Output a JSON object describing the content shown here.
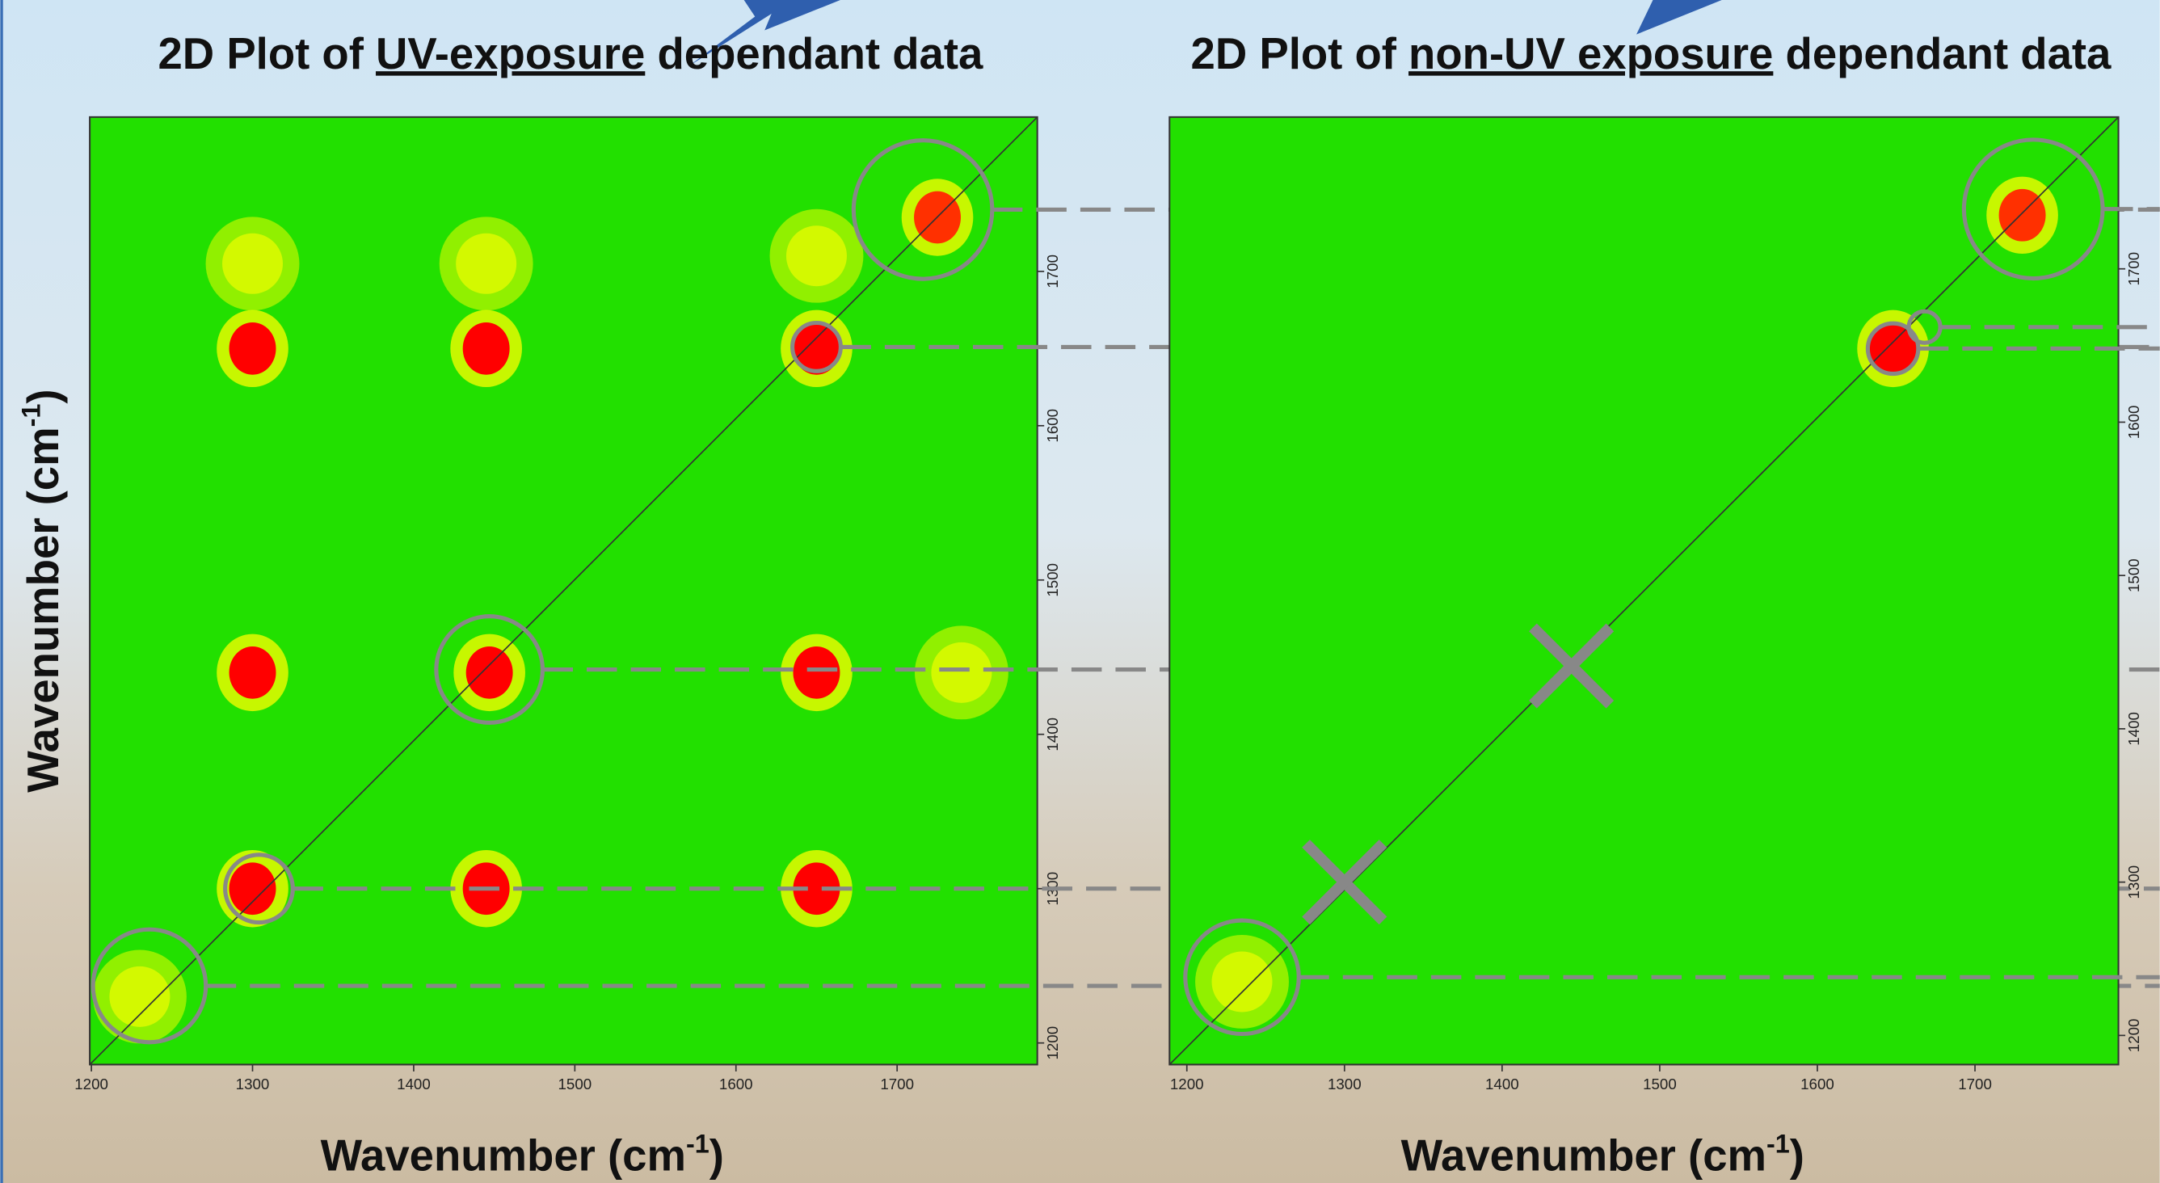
{
  "chart_data": [
    {
      "type": "heatmap",
      "title": [
        "2D Plot of ",
        "UV-exposure",
        " dependant data"
      ],
      "xlabel": [
        "Wavenumber (cm",
        "-1",
        ")"
      ],
      "ylabel": [
        "Wavenumber (cm",
        "-1",
        ")"
      ],
      "xlim": [
        1199,
        1787
      ],
      "ylim": [
        1186,
        1800
      ],
      "xticks": [
        1200,
        1300,
        1400,
        1500,
        1600,
        1700
      ],
      "yticks": [
        1200,
        1300,
        1400,
        1500,
        1600,
        1700
      ],
      "background": "#22e000",
      "peaks": [
        {
          "x": 1300,
          "y": 1650,
          "color": "#ff0000"
        },
        {
          "x": 1445,
          "y": 1650,
          "color": "#ff0000"
        },
        {
          "x": 1650,
          "y": 1650,
          "color": "#ff0000"
        },
        {
          "x": 1300,
          "y": 1440,
          "color": "#ff0000"
        },
        {
          "x": 1447,
          "y": 1440,
          "color": "#ff0000"
        },
        {
          "x": 1650,
          "y": 1440,
          "color": "#ff0000"
        },
        {
          "x": 1300,
          "y": 1300,
          "color": "#ff0000"
        },
        {
          "x": 1445,
          "y": 1300,
          "color": "#ff0000"
        },
        {
          "x": 1650,
          "y": 1300,
          "color": "#ff0000"
        },
        {
          "x": 1725,
          "y": 1735,
          "color": "#ff3000"
        },
        {
          "x": 1300,
          "y": 1705,
          "color": "#ffff00"
        },
        {
          "x": 1445,
          "y": 1705,
          "color": "#ffff00"
        },
        {
          "x": 1650,
          "y": 1710,
          "color": "#ffff00"
        },
        {
          "x": 1740,
          "y": 1440,
          "color": "#ffff00"
        },
        {
          "x": 1230,
          "y": 1230,
          "color": "#ffff00"
        }
      ],
      "circles": [
        {
          "x": 1236,
          "y": 1237,
          "r": 35
        },
        {
          "x": 1304,
          "y": 1300,
          "r": 21
        },
        {
          "x": 1447,
          "y": 1442,
          "r": 33
        },
        {
          "x": 1650,
          "y": 1651,
          "r": 15
        },
        {
          "x": 1716,
          "y": 1740,
          "r": 43
        }
      ],
      "crosses": []
    },
    {
      "type": "heatmap",
      "title": [
        "2D Plot of ",
        "non-UV exposure",
        " dependant data"
      ],
      "xlabel": [
        "Wavenumber (cm",
        "-1",
        ")"
      ],
      "xlim": [
        1189,
        1791
      ],
      "ylim": [
        1181,
        1799
      ],
      "xticks": [
        1200,
        1300,
        1400,
        1500,
        1600,
        1700
      ],
      "yticks": [
        1200,
        1300,
        1400,
        1500,
        1600,
        1700
      ],
      "background": "#22e000",
      "peaks": [
        {
          "x": 1730,
          "y": 1735,
          "color": "#ff3000"
        },
        {
          "x": 1648,
          "y": 1648,
          "color": "#ff0000"
        },
        {
          "x": 1235,
          "y": 1235,
          "color": "#ffff00"
        }
      ],
      "circles": [
        {
          "x": 1235,
          "y": 1238,
          "r": 36
        },
        {
          "x": 1648,
          "y": 1648,
          "r": 16
        },
        {
          "x": 1668,
          "y": 1662,
          "r": 10
        },
        {
          "x": 1737,
          "y": 1739,
          "r": 44
        }
      ],
      "crosses": [
        {
          "x": 1444,
          "y": 1441
        },
        {
          "x": 1300,
          "y": 1300
        }
      ]
    }
  ]
}
